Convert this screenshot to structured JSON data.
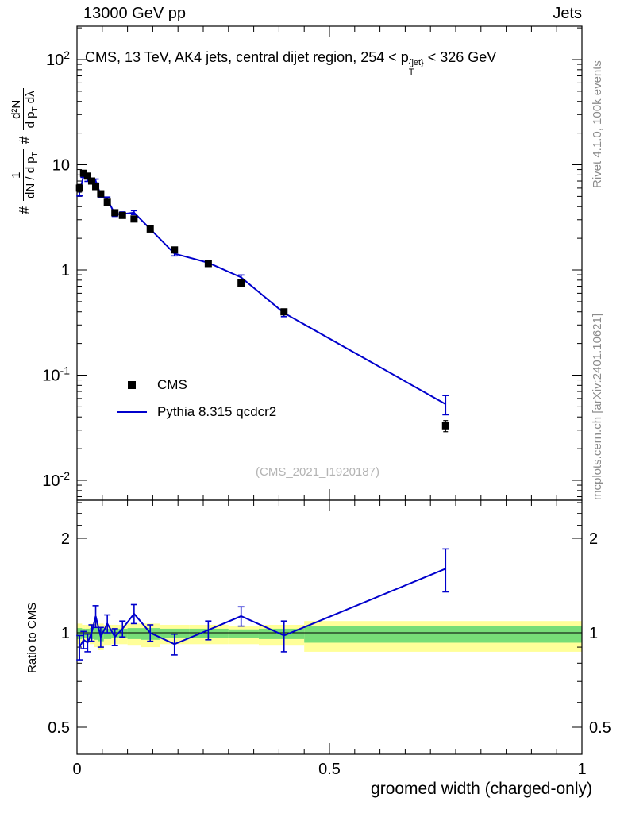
{
  "header": {
    "left": "13000 GeV pp",
    "right": "Jets"
  },
  "title": {
    "prefix": "CMS, 13 TeV, AK4 jets, central dijet region, 254 < p",
    "sup": "{jet}",
    "sub": "T",
    "suffix": " < 326 GeV"
  },
  "ylabel": {
    "hash1": "#",
    "num1": "1",
    "den1_pre": "dN / d p",
    "den1_sub": "T",
    "hash2": "#",
    "num2": "d²N",
    "den2_pre": "d p",
    "den2_sub": "T",
    "den2_post": " dλ"
  },
  "legend": {
    "items": [
      {
        "label": "CMS",
        "marker": "square",
        "color": "#000000"
      },
      {
        "label": "Pythia 8.315 qcdcr2",
        "marker": "line",
        "color": "#0000cc"
      }
    ]
  },
  "watermark": "(CMS_2021_I1920187)",
  "side_texts": {
    "rivet": "Rivet 4.1.0, 100k events",
    "mcplots": "mcplots.cern.ch [arXiv:2401.10621]"
  },
  "axes": {
    "x_title": "groomed width (charged-only)",
    "ratio_title": "Ratio to CMS"
  },
  "chart_data": {
    "type": "line",
    "title": "CMS, 13 TeV, AK4 jets, central dijet region, 254 < pT^{jet} < 326 GeV",
    "xlabel": "groomed width (charged-only)",
    "ylabel": "# 1/(dN/dpT) # d2N/(dpT dlambda)",
    "ratio_ylabel": "Ratio to CMS",
    "xlim": [
      0,
      1
    ],
    "ylog": true,
    "ylim": [
      0.0065,
      210
    ],
    "ratio_ylog": true,
    "ratio_ylim": [
      0.41,
      2.64
    ],
    "grid": false,
    "legend_position": "center-left",
    "x_ticks": {
      "major": [
        0,
        0.5,
        1
      ],
      "labels": [
        "0",
        "0.5",
        "1"
      ],
      "minor_step": 0.05
    },
    "y_ticks": {
      "major": [
        100,
        10,
        1,
        0.1,
        0.01
      ],
      "labels": [
        "10^2",
        "10",
        "1",
        "10^-1",
        "10^-2"
      ]
    },
    "ratio_ticks": {
      "major": [
        2,
        1,
        0.5
      ],
      "labels": [
        "2",
        "1",
        "0.5"
      ],
      "minor": [
        0.6,
        0.7,
        0.8,
        0.9,
        2.2,
        2.4,
        2.6
      ]
    },
    "x": [
      0.005,
      0.013,
      0.021,
      0.029,
      0.037,
      0.047,
      0.06,
      0.075,
      0.09,
      0.113,
      0.145,
      0.193,
      0.26,
      0.325,
      0.41,
      0.73
    ],
    "series": [
      {
        "name": "CMS",
        "style": "marker",
        "color": "#000000",
        "values": [
          6.0,
          8.3,
          7.8,
          7.0,
          6.2,
          5.3,
          4.4,
          3.5,
          3.3,
          3.05,
          2.45,
          1.55,
          1.15,
          0.75,
          0.4,
          0.033
        ],
        "errors": [
          0.5,
          0.45,
          0.4,
          0.35,
          0.3,
          0.27,
          0.22,
          0.18,
          0.16,
          0.14,
          0.11,
          0.08,
          0.05,
          0.04,
          0.025,
          0.004
        ]
      },
      {
        "name": "Pythia 8.315 qcdcr2",
        "style": "line",
        "color": "#0000cc",
        "values": [
          5.4,
          7.89,
          7.25,
          7.0,
          7.01,
          5.14,
          4.71,
          3.4,
          3.4,
          3.51,
          2.45,
          1.43,
          1.17,
          0.85,
          0.39,
          0.053
        ],
        "errors": [
          0.35,
          0.3,
          0.3,
          0.3,
          0.3,
          0.25,
          0.22,
          0.17,
          0.16,
          0.15,
          0.11,
          0.07,
          0.06,
          0.045,
          0.03,
          0.011
        ]
      }
    ],
    "ratio": {
      "values": [
        0.9,
        0.95,
        0.93,
        1.0,
        1.13,
        0.97,
        1.07,
        0.97,
        1.03,
        1.15,
        1.0,
        0.92,
        1.02,
        1.13,
        0.98,
        1.6
      ],
      "errors": [
        0.08,
        0.06,
        0.06,
        0.06,
        0.09,
        0.07,
        0.07,
        0.06,
        0.06,
        0.08,
        0.06,
        0.07,
        0.07,
        0.08,
        0.11,
        0.25
      ]
    },
    "bands": [
      {
        "x0": 0.0,
        "x1": 0.01,
        "ylo": 0.92,
        "yhi": 1.07,
        "glo": 0.955,
        "ghi": 1.035
      },
      {
        "x0": 0.01,
        "x1": 0.017,
        "ylo": 0.94,
        "yhi": 1.06,
        "glo": 0.965,
        "ghi": 1.03
      },
      {
        "x0": 0.017,
        "x1": 0.025,
        "ylo": 0.93,
        "yhi": 1.06,
        "glo": 0.96,
        "ghi": 1.03
      },
      {
        "x0": 0.025,
        "x1": 0.033,
        "ylo": 0.92,
        "yhi": 1.07,
        "glo": 0.955,
        "ghi": 1.035
      },
      {
        "x0": 0.033,
        "x1": 0.042,
        "ylo": 0.9,
        "yhi": 1.08,
        "glo": 0.95,
        "ghi": 1.04
      },
      {
        "x0": 0.042,
        "x1": 0.053,
        "ylo": 0.88,
        "yhi": 1.07,
        "glo": 0.94,
        "ghi": 1.035
      },
      {
        "x0": 0.053,
        "x1": 0.068,
        "ylo": 0.91,
        "yhi": 1.06,
        "glo": 0.955,
        "ghi": 1.03
      },
      {
        "x0": 0.068,
        "x1": 0.083,
        "ylo": 0.92,
        "yhi": 1.06,
        "glo": 0.96,
        "ghi": 1.03
      },
      {
        "x0": 0.083,
        "x1": 0.1,
        "ylo": 0.92,
        "yhi": 1.06,
        "glo": 0.96,
        "ghi": 1.03
      },
      {
        "x0": 0.1,
        "x1": 0.127,
        "ylo": 0.91,
        "yhi": 1.07,
        "glo": 0.955,
        "ghi": 1.035
      },
      {
        "x0": 0.127,
        "x1": 0.164,
        "ylo": 0.9,
        "yhi": 1.07,
        "glo": 0.95,
        "ghi": 1.035
      },
      {
        "x0": 0.164,
        "x1": 0.222,
        "ylo": 0.92,
        "yhi": 1.06,
        "glo": 0.96,
        "ghi": 1.03
      },
      {
        "x0": 0.222,
        "x1": 0.3,
        "ylo": 0.92,
        "yhi": 1.06,
        "glo": 0.96,
        "ghi": 1.03
      },
      {
        "x0": 0.3,
        "x1": 0.36,
        "ylo": 0.92,
        "yhi": 1.05,
        "glo": 0.96,
        "ghi": 1.025
      },
      {
        "x0": 0.36,
        "x1": 0.45,
        "ylo": 0.91,
        "yhi": 1.06,
        "glo": 0.955,
        "ghi": 1.03
      },
      {
        "x0": 0.45,
        "x1": 1.0,
        "ylo": 0.87,
        "yhi": 1.09,
        "glo": 0.93,
        "ghi": 1.05
      }
    ],
    "colors": {
      "band_yellow": "#ffff99",
      "band_green": "#77dd77",
      "mc_line": "#0000cc",
      "data_marker": "#000000"
    }
  }
}
